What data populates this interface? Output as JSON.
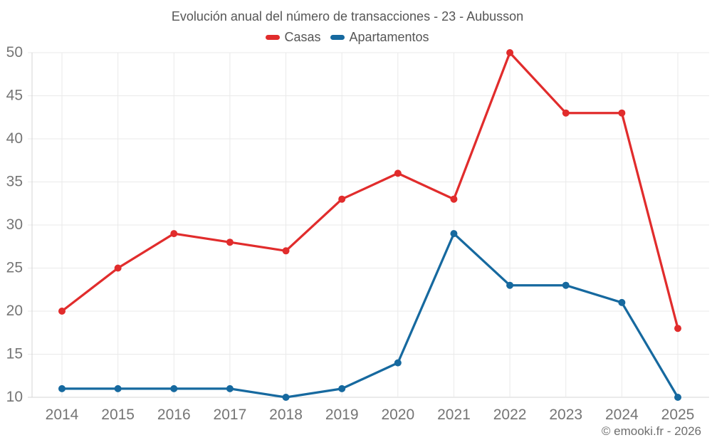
{
  "chart_data": {
    "type": "line",
    "title": "Evolución anual del número de transacciones - 23 - Aubusson",
    "categories": [
      "2014",
      "2015",
      "2016",
      "2017",
      "2018",
      "2019",
      "2020",
      "2021",
      "2022",
      "2023",
      "2024",
      "2025"
    ],
    "series": [
      {
        "name": "Casas",
        "color": "#e12c2c",
        "values": [
          20,
          25,
          29,
          28,
          27,
          33,
          36,
          33,
          50,
          43,
          43,
          18
        ]
      },
      {
        "name": "Apartamentos",
        "color": "#16699f",
        "values": [
          11,
          11,
          11,
          11,
          10,
          11,
          14,
          29,
          23,
          23,
          21,
          10
        ]
      }
    ],
    "xlabel": "",
    "ylabel": "",
    "ylim": [
      10,
      50
    ],
    "y_ticks": [
      10,
      15,
      20,
      25,
      30,
      35,
      40,
      45,
      50
    ],
    "grid": true,
    "legend_position": "top"
  },
  "footer": {
    "text": "© emooki.fr - 2026"
  },
  "theme": {
    "background": "#ffffff",
    "grid_color": "#eaeaea",
    "axis_color": "#d4d4d4",
    "tick_label_color": "#757575",
    "title_color": "#565656",
    "footer_color": "#6e6e6e"
  }
}
